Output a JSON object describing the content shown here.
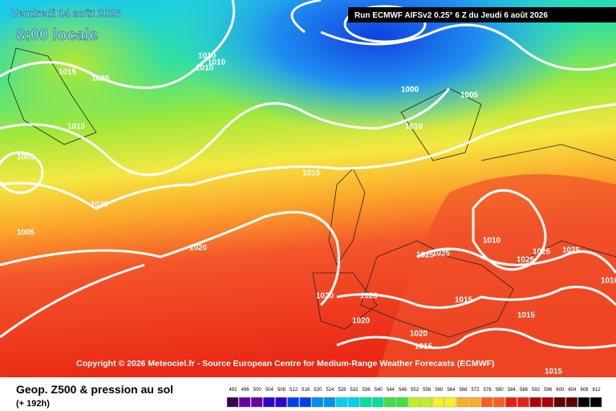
{
  "header": {
    "date": "Vendredi 14 août 2026",
    "time": "8:00 locale",
    "run": "Run ECMWF AIFSv2 0.25° 6 Z du Jeudi 6 août 2026"
  },
  "copyright": "Copyright © 2026 Meteociel.fr - Source European Centre for Medium-Range Weather Forecasts (ECMWF)",
  "isobar_labels": [
    "1015",
    "1020",
    "1010",
    "1010",
    "1010",
    "1005",
    "1010",
    "1005",
    "1020",
    "1000",
    "1005",
    "1010",
    "1015",
    "1020",
    "1025",
    "1025",
    "1025",
    "1025",
    "1025",
    "1015",
    "1020",
    "1020",
    "1020",
    "1020",
    "1015",
    "1015",
    "1010",
    "1015",
    "1010"
  ],
  "footer": {
    "title": "Geop. Z500 & pression au sol",
    "lead": "(+ 192h)"
  },
  "legend": {
    "labels": [
      492,
      496,
      500,
      504,
      508,
      512,
      516,
      520,
      524,
      528,
      532,
      536,
      540,
      544,
      548,
      552,
      556,
      560,
      564,
      568,
      572,
      576,
      580,
      584,
      588,
      592,
      596,
      600,
      604,
      608,
      612
    ]
  }
}
